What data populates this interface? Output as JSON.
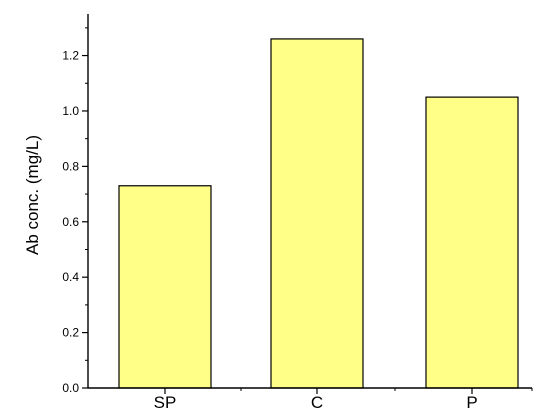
{
  "chart_data": {
    "type": "bar",
    "categories": [
      "SP",
      "C",
      "P"
    ],
    "values": [
      0.73,
      1.26,
      1.05
    ],
    "title": "",
    "xlabel": "",
    "ylabel": "Ab conc. (mg/L)",
    "ylim": [
      0,
      1.35
    ],
    "yticks": [
      0.0,
      0.2,
      0.4,
      0.6,
      0.8,
      1.0,
      1.2
    ],
    "ytick_labels": [
      "0.0",
      "0.2",
      "0.4",
      "0.6",
      "0.8",
      "1.0",
      "1.2"
    ],
    "grid": false,
    "legend": "none",
    "colors": {
      "bar_fill": "#ffff88",
      "bar_stroke": "#000000",
      "axis": "#000000"
    }
  }
}
